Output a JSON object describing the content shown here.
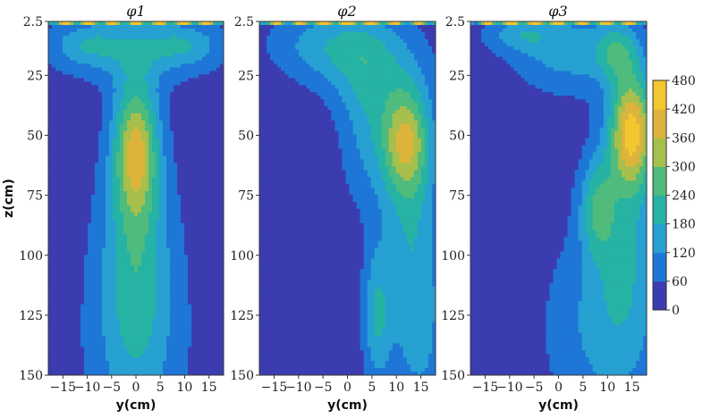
{
  "chart_data": {
    "type": "heatmap",
    "panels": [
      {
        "title": "φ1",
        "hotspots": [
          {
            "y": 0,
            "z": 55,
            "sy": 3.2,
            "sz": 20,
            "amp": 310
          },
          {
            "y": 0,
            "z": 100,
            "sy": 5,
            "sz": 35,
            "amp": 150
          },
          {
            "y": 0,
            "z": 140,
            "sy": 8,
            "sz": 40,
            "amp": 90
          },
          {
            "y": -10,
            "z": 12,
            "sy": 5,
            "sz": 6,
            "amp": 90
          },
          {
            "y": 10,
            "z": 12,
            "sy": 5,
            "sz": 6,
            "amp": 90
          },
          {
            "y": 0,
            "z": 14,
            "sy": 12,
            "sz": 10,
            "amp": 120
          }
        ]
      },
      {
        "title": "φ2",
        "hotspots": [
          {
            "y": 12,
            "z": 52,
            "sy": 3.5,
            "sz": 16,
            "amp": 300
          },
          {
            "y": 13,
            "z": 90,
            "sy": 4,
            "sz": 30,
            "amp": 130
          },
          {
            "y": 6,
            "z": 125,
            "sy": 2,
            "sz": 20,
            "amp": 150
          },
          {
            "y": 4,
            "z": 45,
            "sy": 4,
            "sz": 25,
            "amp": 110
          },
          {
            "y": 15,
            "z": 140,
            "sy": 5,
            "sz": 30,
            "amp": 90
          },
          {
            "y": -5,
            "z": 12,
            "sy": 8,
            "sz": 10,
            "amp": 110
          },
          {
            "y": 5,
            "z": 20,
            "sy": 8,
            "sz": 14,
            "amp": 110
          }
        ]
      },
      {
        "title": "φ3",
        "hotspots": [
          {
            "y": 15,
            "z": 48,
            "sy": 3,
            "sz": 16,
            "amp": 370
          },
          {
            "y": 14,
            "z": 90,
            "sy": 5,
            "sz": 40,
            "amp": 130
          },
          {
            "y": 8,
            "z": 80,
            "sy": 2.5,
            "sz": 14,
            "amp": 170
          },
          {
            "y": 8,
            "z": 130,
            "sy": 8,
            "sz": 30,
            "amp": 100
          },
          {
            "y": 2,
            "z": 15,
            "sy": 8,
            "sz": 12,
            "amp": 130
          },
          {
            "y": 12,
            "z": 15,
            "sy": 3,
            "sz": 8,
            "amp": 150
          },
          {
            "y": -8,
            "z": 8,
            "sy": 5,
            "sz": 5,
            "amp": 110
          }
        ]
      }
    ],
    "x_ticks": [
      -15,
      -10,
      -5,
      0,
      5,
      10,
      15
    ],
    "y_ticks": [
      2.5,
      25,
      50,
      75,
      100,
      125,
      150
    ],
    "xlabel": "y(cm)",
    "ylabel": "z(cm)",
    "xlim": [
      -18,
      18
    ],
    "ylim": [
      150,
      2.5
    ],
    "surface_band": {
      "z_max": 2.5,
      "amp": 400
    },
    "colorbar": {
      "levels": [
        0,
        60,
        120,
        180,
        240,
        300,
        360,
        420,
        480
      ],
      "tick_labels": [
        "480",
        "420",
        "360",
        "300",
        "240",
        "180",
        "120",
        "60",
        "0"
      ],
      "colors": [
        "#3c3cb1",
        "#1e77d7",
        "#27a0d2",
        "#26b3a4",
        "#4fbb7d",
        "#a7bf4c",
        "#dcb43c",
        "#f2c72f"
      ]
    }
  }
}
